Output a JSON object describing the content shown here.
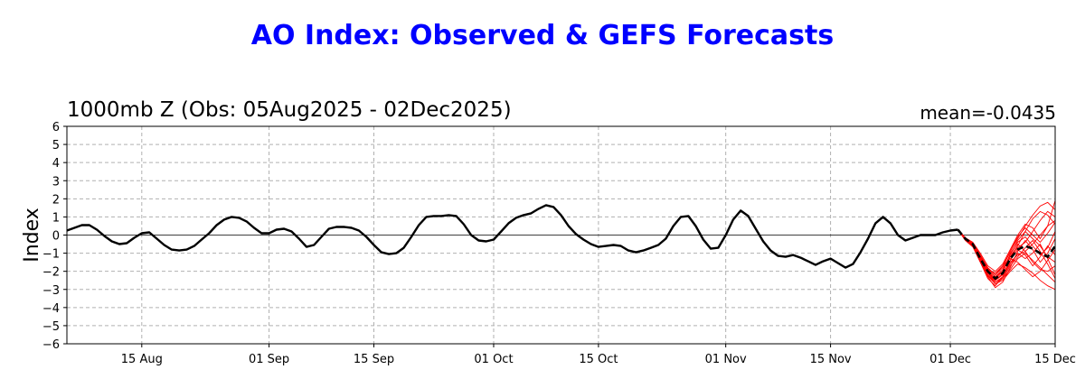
{
  "chart_data": {
    "type": "line",
    "title": "AO Index: Observed & GEFS Forecasts",
    "subtitle": "1000mb Z (Obs: 05Aug2025 - 02Dec2025)",
    "annotation": "mean=-0.0435",
    "ylabel": "Index",
    "xlabel": "",
    "ylim": [
      -6,
      6
    ],
    "y_ticks": [
      -6,
      -5,
      -4,
      -3,
      -2,
      -1,
      0,
      1,
      2,
      3,
      4,
      5,
      6
    ],
    "x_range_days": [
      0,
      132
    ],
    "x_ticks": [
      {
        "label": "15 Aug",
        "day": 10
      },
      {
        "label": "01 Sep",
        "day": 27
      },
      {
        "label": "15 Sep",
        "day": 41
      },
      {
        "label": "01 Oct",
        "day": 57
      },
      {
        "label": "15 Oct",
        "day": 71
      },
      {
        "label": "01 Nov",
        "day": 88
      },
      {
        "label": "15 Nov",
        "day": 102
      },
      {
        "label": "01 Dec",
        "day": 118
      },
      {
        "label": "15 Dec",
        "day": 132
      }
    ],
    "grid": true,
    "colors": {
      "observed": "#000000",
      "members": "#ff0000",
      "title": "#0000ff",
      "grid": "#b0b0b0"
    },
    "observed": {
      "name": "Observed",
      "x": [
        0,
        1,
        2,
        3,
        4,
        5,
        6,
        7,
        8,
        9,
        10,
        11,
        12,
        13,
        14,
        15,
        16,
        17,
        18,
        19,
        20,
        21,
        22,
        23,
        24,
        25,
        26,
        27,
        28,
        29,
        30,
        31,
        32,
        33,
        34,
        35,
        36,
        37,
        38,
        39,
        40,
        41,
        42,
        43,
        44,
        45,
        46,
        47,
        48,
        49,
        50,
        51,
        52,
        53,
        54,
        55,
        56,
        57,
        58,
        59,
        60,
        61,
        62,
        63,
        64,
        65,
        66,
        67,
        68,
        69,
        70,
        71,
        72,
        73,
        74,
        75,
        76,
        77,
        78,
        79,
        80,
        81,
        82,
        83,
        84,
        85,
        86,
        87,
        88,
        89,
        90,
        91,
        92,
        93,
        94,
        95,
        96,
        97,
        98,
        99,
        100,
        101,
        102,
        103,
        104,
        105,
        106,
        107,
        108,
        109,
        110,
        111,
        112,
        113,
        114,
        115,
        116,
        117,
        118,
        119
      ],
      "y": [
        0.25,
        0.4,
        0.55,
        0.55,
        0.3,
        -0.05,
        -0.35,
        -0.5,
        -0.45,
        -0.15,
        0.1,
        0.15,
        -0.2,
        -0.55,
        -0.8,
        -0.85,
        -0.8,
        -0.6,
        -0.25,
        0.1,
        0.55,
        0.85,
        1.0,
        0.95,
        0.75,
        0.4,
        0.1,
        0.1,
        0.3,
        0.35,
        0.2,
        -0.2,
        -0.65,
        -0.55,
        -0.1,
        0.35,
        0.45,
        0.45,
        0.4,
        0.25,
        -0.1,
        -0.55,
        -0.95,
        -1.05,
        -1.0,
        -0.7,
        -0.1,
        0.55,
        1.0,
        1.05,
        1.05,
        1.1,
        1.05,
        0.6,
        0.0,
        -0.3,
        -0.35,
        -0.25,
        0.2,
        0.65,
        0.95,
        1.1,
        1.2,
        1.45,
        1.65,
        1.55,
        1.1,
        0.5,
        0.05,
        -0.25,
        -0.5,
        -0.65,
        -0.6,
        -0.55,
        -0.6,
        -0.85,
        -0.95,
        -0.85,
        -0.7,
        -0.55,
        -0.2,
        0.5,
        1.0,
        1.05,
        0.5,
        -0.25,
        -0.75,
        -0.7,
        0.0,
        0.85,
        1.35,
        1.05,
        0.35,
        -0.35,
        -0.85,
        -1.15,
        -1.2,
        -1.1,
        -1.25,
        -1.45,
        -1.65,
        -1.45,
        -1.3,
        -1.55,
        -1.8,
        -1.6,
        -0.95,
        -0.2,
        0.65,
        1.0,
        0.65,
        0.0,
        -0.3,
        -0.15,
        0.0,
        0.0,
        0.0,
        0.15,
        0.25,
        0.3
      ]
    },
    "ensemble_mean": {
      "name": "GEFS Mean",
      "x": [
        119,
        120,
        121,
        122,
        123,
        124,
        125,
        126,
        127,
        128,
        129,
        130,
        131,
        132
      ],
      "y": [
        0.3,
        -0.2,
        -0.5,
        -1.3,
        -2.0,
        -2.4,
        -2.1,
        -1.3,
        -0.8,
        -0.6,
        -0.75,
        -1.0,
        -1.2,
        -0.6
      ]
    },
    "members": [
      {
        "x": [
          119,
          120,
          121,
          122,
          123,
          124,
          125,
          126,
          127,
          128,
          129,
          130,
          131,
          132
        ],
        "y": [
          0.3,
          -0.15,
          -0.45,
          -1.1,
          -1.8,
          -2.2,
          -1.7,
          -0.9,
          -0.2,
          0.5,
          1.1,
          1.6,
          1.8,
          1.4
        ]
      },
      {
        "x": [
          119,
          120,
          121,
          122,
          123,
          124,
          125,
          126,
          127,
          128,
          129,
          130,
          131,
          132
        ],
        "y": [
          0.3,
          -0.25,
          -0.55,
          -1.4,
          -2.2,
          -2.7,
          -2.5,
          -2.0,
          -1.6,
          -1.8,
          -2.1,
          -2.5,
          -2.8,
          -3.0
        ]
      },
      {
        "x": [
          119,
          120,
          121,
          122,
          123,
          124,
          125,
          126,
          127,
          128,
          129,
          130,
          131,
          132
        ],
        "y": [
          0.3,
          -0.2,
          -0.5,
          -1.2,
          -2.0,
          -2.5,
          -2.2,
          -1.4,
          -0.6,
          0.2,
          0.9,
          1.3,
          1.1,
          0.6
        ]
      },
      {
        "x": [
          119,
          120,
          121,
          122,
          123,
          124,
          125,
          126,
          127,
          128,
          129,
          130,
          131,
          132
        ],
        "y": [
          0.3,
          -0.2,
          -0.55,
          -1.35,
          -2.1,
          -2.6,
          -2.4,
          -1.9,
          -1.3,
          -1.0,
          -1.4,
          -1.8,
          -2.2,
          -2.6
        ]
      },
      {
        "x": [
          119,
          120,
          121,
          122,
          123,
          124,
          125,
          126,
          127,
          128,
          129,
          130,
          131,
          132
        ],
        "y": [
          0.3,
          -0.15,
          -0.4,
          -1.0,
          -1.7,
          -2.0,
          -1.6,
          -0.8,
          0.0,
          0.6,
          0.4,
          -0.2,
          0.5,
          1.9
        ]
      },
      {
        "x": [
          119,
          120,
          121,
          122,
          123,
          124,
          125,
          126,
          127,
          128,
          129,
          130,
          131,
          132
        ],
        "y": [
          0.3,
          -0.25,
          -0.6,
          -1.5,
          -2.3,
          -2.9,
          -2.6,
          -1.8,
          -0.9,
          -0.3,
          -0.8,
          -1.5,
          -1.0,
          -0.2
        ]
      },
      {
        "x": [
          119,
          120,
          121,
          122,
          123,
          124,
          125,
          126,
          127,
          128,
          129,
          130,
          131,
          132
        ],
        "y": [
          0.3,
          -0.2,
          -0.5,
          -1.25,
          -1.95,
          -2.3,
          -2.0,
          -1.2,
          -0.5,
          -0.9,
          -1.5,
          -1.9,
          -2.0,
          -1.7
        ]
      },
      {
        "x": [
          119,
          120,
          121,
          122,
          123,
          124,
          125,
          126,
          127,
          128,
          129,
          130,
          131,
          132
        ],
        "y": [
          0.3,
          -0.2,
          -0.45,
          -1.15,
          -1.9,
          -2.3,
          -1.9,
          -1.1,
          -0.3,
          0.2,
          -0.2,
          -0.6,
          -1.2,
          -1.5
        ]
      },
      {
        "x": [
          119,
          120,
          121,
          122,
          123,
          124,
          125,
          126,
          127,
          128,
          129,
          130,
          131,
          132
        ],
        "y": [
          0.3,
          -0.3,
          -0.65,
          -1.5,
          -2.4,
          -2.8,
          -2.3,
          -1.5,
          -1.1,
          -0.9,
          -0.5,
          0.0,
          0.5,
          0.8
        ]
      },
      {
        "x": [
          119,
          120,
          121,
          122,
          123,
          124,
          125,
          126,
          127,
          128,
          129,
          130,
          131,
          132
        ],
        "y": [
          0.3,
          -0.15,
          -0.5,
          -1.3,
          -2.1,
          -2.5,
          -2.1,
          -1.0,
          -0.4,
          -0.1,
          -0.6,
          -1.1,
          -0.7,
          0.2
        ]
      },
      {
        "x": [
          119,
          120,
          121,
          122,
          123,
          124,
          125,
          126,
          127,
          128,
          129,
          130,
          131,
          132
        ],
        "y": [
          0.3,
          -0.2,
          -0.55,
          -1.3,
          -1.9,
          -2.1,
          -1.7,
          -1.3,
          -1.5,
          -1.9,
          -2.3,
          -2.0,
          -1.4,
          -0.8
        ]
      },
      {
        "x": [
          119,
          120,
          121,
          122,
          123,
          124,
          125,
          126,
          127,
          128,
          129,
          130,
          131,
          132
        ],
        "y": [
          0.3,
          -0.25,
          -0.5,
          -1.2,
          -2.0,
          -2.4,
          -2.0,
          -1.2,
          -0.7,
          -0.4,
          0.2,
          0.8,
          1.3,
          1.0
        ]
      },
      {
        "x": [
          119,
          120,
          121,
          122,
          123,
          124,
          125,
          126,
          127,
          128,
          129,
          130,
          131,
          132
        ],
        "y": [
          0.3,
          -0.2,
          -0.5,
          -1.35,
          -2.2,
          -2.6,
          -2.3,
          -1.6,
          -1.0,
          -1.3,
          -1.0,
          -0.5,
          -1.3,
          -2.2
        ]
      },
      {
        "x": [
          119,
          120,
          121,
          122,
          123,
          124,
          125,
          126,
          127,
          128,
          129,
          130,
          131,
          132
        ],
        "y": [
          0.3,
          -0.15,
          -0.45,
          -1.1,
          -1.85,
          -2.2,
          -1.8,
          -0.9,
          -0.1,
          0.4,
          0.0,
          -0.4,
          0.1,
          0.7
        ]
      },
      {
        "x": [
          119,
          120,
          121,
          122,
          123,
          124,
          125,
          126,
          127,
          128,
          129,
          130,
          131,
          132
        ],
        "y": [
          0.3,
          -0.2,
          -0.5,
          -1.25,
          -2.05,
          -2.45,
          -2.15,
          -1.4,
          -0.8,
          -1.1,
          -1.7,
          -1.2,
          -0.6,
          -1.1
        ]
      },
      {
        "x": [
          119,
          120,
          121,
          122,
          123,
          124,
          125,
          126,
          127,
          128,
          129,
          130,
          131,
          132
        ],
        "y": [
          0.3,
          -0.2,
          -0.55,
          -1.4,
          -2.25,
          -2.7,
          -2.4,
          -1.7,
          -1.2,
          -0.7,
          -0.3,
          -0.9,
          -1.6,
          -2.4
        ]
      }
    ]
  }
}
